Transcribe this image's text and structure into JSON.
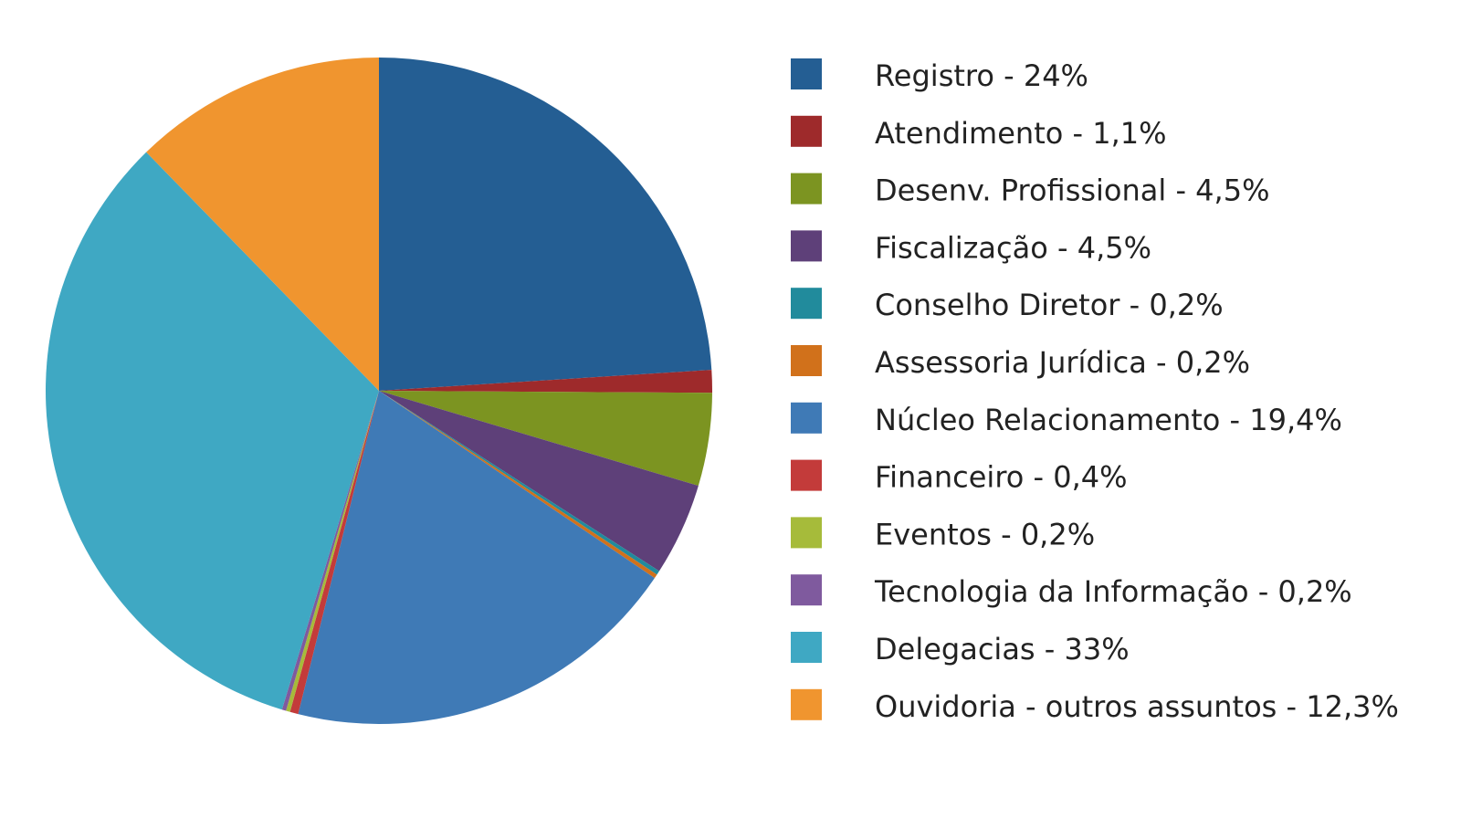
{
  "chart_data": {
    "type": "pie",
    "categories": [
      "Registro - 24%",
      "Atendimento - 1,1%",
      "Desenv. Profissional - 4,5%",
      "Fiscalização - 4,5%",
      "Conselho Diretor - 0,2%",
      "Assessoria Jurídica - 0,2%",
      "Núcleo Relacionamento - 19,4%",
      "Financeiro - 0,4%",
      "Eventos - 0,2%",
      "Tecnologia da Informação - 0,2%",
      "Delegacias - 33%",
      "Ouvidoria - outros assuntos - 12,3%"
    ],
    "values": [
      24,
      1.1,
      4.5,
      4.5,
      0.2,
      0.2,
      19.4,
      0.4,
      0.2,
      0.2,
      33,
      12.3
    ],
    "colors": [
      "#245e93",
      "#9e2a2b",
      "#7c9421",
      "#5e4079",
      "#218b9c",
      "#d1711b",
      "#3f7ab6",
      "#c33b3a",
      "#a6bb3a",
      "#7f5a9e",
      "#3fa8c3",
      "#f0952f"
    ]
  }
}
